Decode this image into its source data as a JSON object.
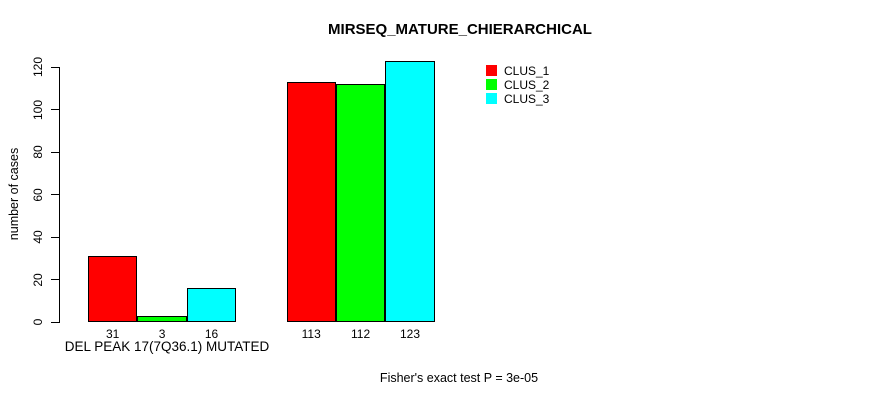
{
  "title": "MIRSEQ_MATURE_CHIERARCHICAL",
  "footer": "Fisher's exact test P = 3e-05",
  "chart_data": {
    "type": "bar",
    "title": "MIRSEQ_MATURE_CHIERARCHICAL",
    "ylabel": "number of cases",
    "xlabel": "",
    "categories": [
      "DEL PEAK 17(7Q36.1) MUTATED",
      ""
    ],
    "series": [
      {
        "name": "CLUS_1",
        "color": "#FF0000",
        "values": [
          31,
          113
        ]
      },
      {
        "name": "CLUS_2",
        "color": "#00FF00",
        "values": [
          3,
          112
        ]
      },
      {
        "name": "CLUS_3",
        "color": "#00FFFF",
        "values": [
          16,
          123
        ]
      }
    ],
    "bar_value_labels": [
      [
        "31",
        "3",
        "16"
      ],
      [
        "113",
        "112",
        "123"
      ]
    ],
    "yticks": [
      0,
      20,
      40,
      60,
      80,
      100,
      120
    ],
    "ylim": [
      0,
      124
    ],
    "grid": false,
    "legend_position": "top-right",
    "annotation": "Fisher's exact test P = 3e-05",
    "colors": {
      "background": "#FFFFFF",
      "axis": "#000000",
      "bar_border": "#000000"
    }
  }
}
